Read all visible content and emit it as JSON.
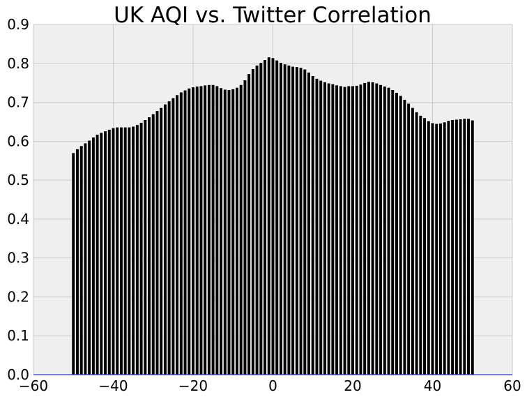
{
  "chart_data": {
    "type": "bar",
    "title": "UK AQI vs. Twitter Correlation",
    "xlabel": "",
    "ylabel": "",
    "xlim": [
      -60,
      60
    ],
    "ylim": [
      0,
      0.9
    ],
    "xticks": [
      -60,
      -40,
      -20,
      0,
      20,
      40,
      60
    ],
    "xtick_labels": [
      "−60",
      "−40",
      "−20",
      "0",
      "20",
      "40",
      "60"
    ],
    "yticks": [
      0.0,
      0.1,
      0.2,
      0.3,
      0.4,
      0.5,
      0.6,
      0.7,
      0.8,
      0.9
    ],
    "ytick_labels": [
      "0.0",
      "0.1",
      "0.2",
      "0.3",
      "0.4",
      "0.5",
      "0.6",
      "0.7",
      "0.8",
      "0.9"
    ],
    "grid": true,
    "x": [
      -50,
      -49,
      -48,
      -47,
      -46,
      -45,
      -44,
      -43,
      -42,
      -41,
      -40,
      -39,
      -38,
      -37,
      -36,
      -35,
      -34,
      -33,
      -32,
      -31,
      -30,
      -29,
      -28,
      -27,
      -26,
      -25,
      -24,
      -23,
      -22,
      -21,
      -20,
      -19,
      -18,
      -17,
      -16,
      -15,
      -14,
      -13,
      -12,
      -11,
      -10,
      -9,
      -8,
      -7,
      -6,
      -5,
      -4,
      -3,
      -2,
      -1,
      0,
      1,
      2,
      3,
      4,
      5,
      6,
      7,
      8,
      9,
      10,
      11,
      12,
      13,
      14,
      15,
      16,
      17,
      18,
      19,
      20,
      21,
      22,
      23,
      24,
      25,
      26,
      27,
      28,
      29,
      30,
      31,
      32,
      33,
      34,
      35,
      36,
      37,
      38,
      39,
      40,
      41,
      42,
      43,
      44,
      45,
      46,
      47,
      48,
      49,
      50
    ],
    "values": [
      0.57,
      0.58,
      0.588,
      0.595,
      0.602,
      0.61,
      0.617,
      0.622,
      0.626,
      0.63,
      0.634,
      0.636,
      0.636,
      0.636,
      0.636,
      0.638,
      0.642,
      0.648,
      0.655,
      0.662,
      0.67,
      0.678,
      0.686,
      0.695,
      0.703,
      0.711,
      0.719,
      0.726,
      0.731,
      0.736,
      0.739,
      0.741,
      0.742,
      0.744,
      0.745,
      0.745,
      0.742,
      0.737,
      0.733,
      0.732,
      0.734,
      0.738,
      0.745,
      0.757,
      0.773,
      0.786,
      0.795,
      0.802,
      0.809,
      0.816,
      0.814,
      0.808,
      0.802,
      0.798,
      0.795,
      0.792,
      0.791,
      0.789,
      0.785,
      0.777,
      0.768,
      0.761,
      0.756,
      0.752,
      0.749,
      0.747,
      0.744,
      0.742,
      0.74,
      0.742,
      0.742,
      0.743,
      0.746,
      0.75,
      0.753,
      0.752,
      0.749,
      0.745,
      0.741,
      0.738,
      0.732,
      0.725,
      0.717,
      0.707,
      0.697,
      0.686,
      0.675,
      0.666,
      0.66,
      0.652,
      0.647,
      0.645,
      0.646,
      0.649,
      0.653,
      0.655,
      0.656,
      0.657,
      0.658,
      0.658,
      0.654
    ],
    "bar_color": "#000000",
    "bar_edge_color": "#ffffff",
    "plot_background": "#efefef",
    "grid_color": "#cbcbcb",
    "baseline_color": "#3333cc"
  }
}
